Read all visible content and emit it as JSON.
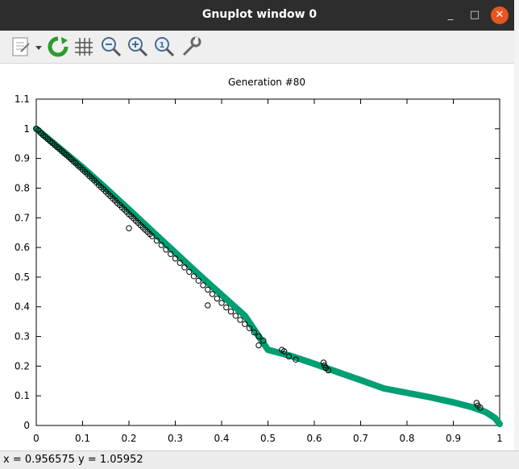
{
  "window": {
    "title": "Gnuplot window 0"
  },
  "window_controls": {
    "minimize": "_",
    "maximize": "□",
    "close": "✕"
  },
  "toolbar": {
    "items": [
      {
        "name": "export-icon",
        "tooltip": "Export"
      },
      {
        "name": "replot-icon",
        "tooltip": "Replot"
      },
      {
        "name": "grid-icon",
        "tooltip": "Grid"
      },
      {
        "name": "zoom-previous-icon",
        "tooltip": "Previous zoom"
      },
      {
        "name": "zoom-next-icon",
        "tooltip": "Next zoom"
      },
      {
        "name": "autoscale-icon",
        "tooltip": "Autoscale"
      },
      {
        "name": "settings-wrench-icon",
        "tooltip": "Settings"
      }
    ]
  },
  "status": {
    "text": "x = 0.956575 y = 1.05952"
  },
  "chart_data": {
    "type": "scatter",
    "title": "Generation #80",
    "xlabel": "",
    "ylabel": "",
    "xlim": [
      0,
      1
    ],
    "ylim": [
      0,
      1.1
    ],
    "xticks": [
      "0",
      "0.1",
      "0.2",
      "0.3",
      "0.4",
      "0.5",
      "0.6",
      "0.7",
      "0.8",
      "0.9",
      "1"
    ],
    "yticks": [
      "0",
      "0.1",
      "0.2",
      "0.3",
      "0.4",
      "0.5",
      "0.6",
      "0.7",
      "0.8",
      "0.9",
      "1",
      "1.1"
    ],
    "grid": false,
    "legend": "none",
    "series": [
      {
        "style": "thick-line",
        "color": "#009e73",
        "x": [
          0,
          0.05,
          0.1,
          0.15,
          0.2,
          0.25,
          0.3,
          0.35,
          0.4,
          0.45,
          0.5,
          0.55,
          0.6,
          0.65,
          0.7,
          0.75,
          0.8,
          0.85,
          0.9,
          0.94,
          0.97,
          0.99,
          1.0
        ],
        "y": [
          1.0,
          0.935,
          0.87,
          0.8,
          0.728,
          0.655,
          0.583,
          0.51,
          0.44,
          0.37,
          0.255,
          0.234,
          0.208,
          0.18,
          0.153,
          0.125,
          0.11,
          0.095,
          0.078,
          0.062,
          0.045,
          0.025,
          0.005
        ]
      },
      {
        "style": "open-circles",
        "color": "#000000",
        "x": [
          0.0,
          0.005,
          0.01,
          0.015,
          0.02,
          0.025,
          0.03,
          0.035,
          0.04,
          0.045,
          0.05,
          0.055,
          0.06,
          0.065,
          0.07,
          0.075,
          0.08,
          0.085,
          0.09,
          0.095,
          0.1,
          0.105,
          0.11,
          0.115,
          0.12,
          0.125,
          0.13,
          0.135,
          0.14,
          0.145,
          0.15,
          0.155,
          0.16,
          0.165,
          0.17,
          0.175,
          0.18,
          0.185,
          0.19,
          0.195,
          0.2,
          0.205,
          0.21,
          0.215,
          0.22,
          0.225,
          0.23,
          0.235,
          0.24,
          0.245,
          0.25,
          0.26,
          0.27,
          0.28,
          0.29,
          0.3,
          0.31,
          0.32,
          0.33,
          0.34,
          0.35,
          0.36,
          0.37,
          0.38,
          0.39,
          0.4,
          0.41,
          0.42,
          0.43,
          0.44,
          0.45,
          0.46,
          0.47,
          0.48,
          0.49,
          0.53,
          0.535,
          0.545,
          0.56,
          0.62,
          0.622,
          0.625,
          0.63,
          0.95,
          0.953,
          0.958,
          0.2,
          0.37,
          0.48
        ],
        "y": [
          1.0,
          0.995,
          0.985,
          0.978,
          0.972,
          0.965,
          0.958,
          0.952,
          0.945,
          0.938,
          0.932,
          0.925,
          0.918,
          0.912,
          0.905,
          0.898,
          0.89,
          0.884,
          0.876,
          0.87,
          0.862,
          0.855,
          0.848,
          0.84,
          0.833,
          0.826,
          0.818,
          0.81,
          0.803,
          0.796,
          0.788,
          0.78,
          0.773,
          0.765,
          0.758,
          0.75,
          0.743,
          0.735,
          0.728,
          0.72,
          0.712,
          0.705,
          0.698,
          0.69,
          0.683,
          0.675,
          0.668,
          0.66,
          0.653,
          0.645,
          0.638,
          0.623,
          0.608,
          0.593,
          0.578,
          0.563,
          0.548,
          0.533,
          0.518,
          0.503,
          0.488,
          0.473,
          0.458,
          0.443,
          0.428,
          0.413,
          0.398,
          0.384,
          0.37,
          0.356,
          0.342,
          0.328,
          0.314,
          0.3,
          0.286,
          0.255,
          0.25,
          0.233,
          0.222,
          0.212,
          0.203,
          0.194,
          0.186,
          0.076,
          0.067,
          0.06,
          0.665,
          0.405,
          0.27
        ]
      }
    ]
  }
}
